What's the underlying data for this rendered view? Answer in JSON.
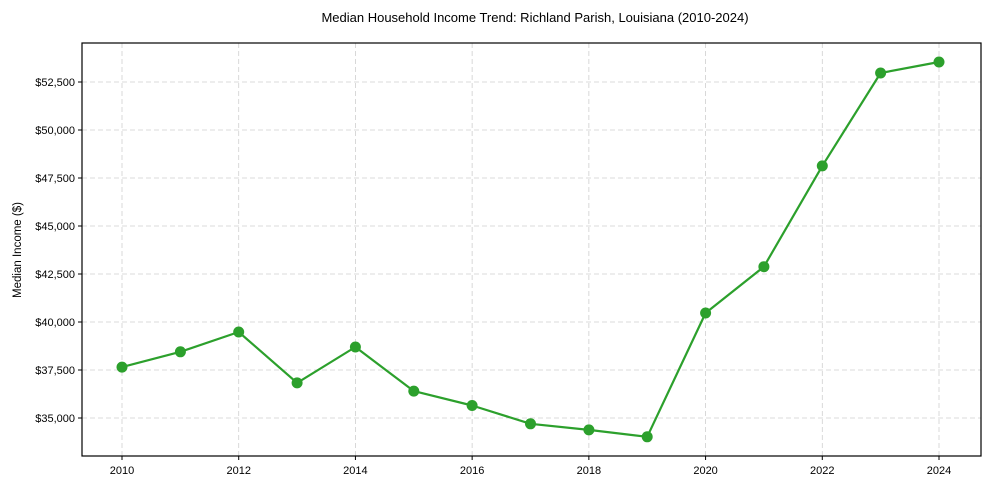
{
  "chart_data": {
    "type": "line",
    "title": "Median Household Income Trend: Richland Parish, Louisiana (2010-2024)",
    "xlabel": "",
    "ylabel": "Median Income ($)",
    "x": [
      2010,
      2011,
      2012,
      2013,
      2014,
      2015,
      2016,
      2017,
      2018,
      2019,
      2020,
      2021,
      2022,
      2023,
      2024
    ],
    "series": [
      {
        "name": "Median Household Income",
        "color": "#2ca02c",
        "values": [
          37650,
          38450,
          39480,
          36830,
          38700,
          36400,
          35650,
          34700,
          34380,
          34020,
          40470,
          42880,
          48130,
          52970,
          53540
        ]
      }
    ],
    "xticks": [
      2010,
      2012,
      2014,
      2016,
      2018,
      2020,
      2022,
      2024
    ],
    "xtick_labels": [
      "2010",
      "2012",
      "2014",
      "2016",
      "2018",
      "2020",
      "2022",
      "2024"
    ],
    "yticks": [
      35000,
      37500,
      40000,
      42500,
      45000,
      47500,
      50000,
      52500
    ],
    "ytick_labels": [
      "$35,000",
      "$37,500",
      "$40,000",
      "$42,500",
      "$45,000",
      "$47,500",
      "$50,000",
      "$52,500"
    ],
    "xlim": [
      2009.3,
      2024.7
    ],
    "ylim": [
      33150,
      54600
    ],
    "grid": true,
    "legend": null,
    "marker": "circle"
  }
}
